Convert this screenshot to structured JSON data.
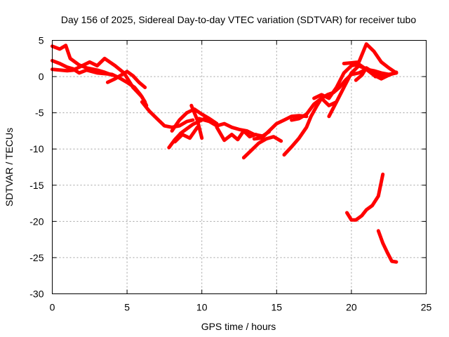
{
  "chart_data": {
    "type": "line",
    "title": "Day 156 of 2025, Sidereal Day-to-day VTEC variation (SDTVAR) for receiver tubo",
    "xlabel": "GPS time / hours",
    "ylabel": "SDTVAR / TECUs",
    "xlim": [
      0,
      25
    ],
    "ylim": [
      -30,
      5
    ],
    "xticks": [
      0,
      5,
      10,
      15,
      20,
      25
    ],
    "yticks": [
      5,
      0,
      -5,
      -10,
      -15,
      -20,
      -25,
      -30
    ],
    "xtick_labels": [
      "0",
      "5",
      "10",
      "15",
      "20",
      "25"
    ],
    "ytick_labels": [
      "5",
      "0",
      "-5",
      "-10",
      "-15",
      "-20",
      "-25",
      "-30"
    ],
    "grid": true,
    "color": "#ff0000",
    "series": [
      {
        "x": [
          0.0,
          0.5,
          0.9,
          1.2,
          1.8,
          2.3,
          3.0,
          3.5,
          4.0
        ],
        "y": [
          4.2,
          3.8,
          4.3,
          2.5,
          1.6,
          1.2,
          0.9,
          0.6,
          0.2
        ]
      },
      {
        "x": [
          0.0,
          0.5,
          1.0,
          1.5,
          2.0,
          2.5,
          3.0,
          3.5,
          4.2,
          4.8,
          5.4,
          6.0,
          6.3
        ],
        "y": [
          2.2,
          1.8,
          1.3,
          1.0,
          1.5,
          2.0,
          1.5,
          2.5,
          1.5,
          0.5,
          -1.5,
          -2.8,
          -4.0
        ]
      },
      {
        "x": [
          0.0,
          0.5,
          1.0,
          1.5,
          1.8,
          2.3,
          3.0,
          3.5,
          4.0,
          4.5,
          5.0,
          5.5,
          5.9,
          6.2
        ],
        "y": [
          1.0,
          0.9,
          0.8,
          0.9,
          0.5,
          0.9,
          0.5,
          0.4,
          0.3,
          -0.2,
          -0.8,
          -1.5,
          -2.5,
          -3.5
        ]
      },
      {
        "x": [
          3.7,
          4.2,
          4.6,
          5.0,
          5.4,
          5.8,
          6.2
        ],
        "y": [
          -0.8,
          -0.3,
          0.2,
          0.7,
          0.1,
          -0.8,
          -1.5
        ]
      },
      {
        "x": [
          6.0,
          6.5,
          7.0,
          7.5,
          8.0,
          8.5,
          9.0,
          9.4
        ],
        "y": [
          -3.5,
          -4.8,
          -5.8,
          -6.8,
          -7.0,
          -6.8,
          -6.2,
          -6.0
        ]
      },
      {
        "x": [
          7.8,
          8.2,
          8.6,
          9.0,
          9.4,
          9.8,
          10.2
        ],
        "y": [
          -9.8,
          -8.7,
          -7.8,
          -7.2,
          -6.6,
          -6.2,
          -5.8
        ]
      },
      {
        "x": [
          8.0,
          8.5,
          9.0,
          9.5,
          10.0,
          10.5,
          11.0
        ],
        "y": [
          -7.5,
          -6.0,
          -5.0,
          -4.5,
          -5.2,
          -5.8,
          -6.5
        ]
      },
      {
        "x": [
          8.2,
          8.7,
          9.2,
          9.7
        ],
        "y": [
          -9.0,
          -8.0,
          -8.5,
          -7.0
        ]
      },
      {
        "x": [
          9.3,
          9.7,
          10.0
        ],
        "y": [
          -4.0,
          -6.0,
          -8.5
        ]
      },
      {
        "x": [
          9.8,
          10.5,
          11.0,
          11.5,
          12.0,
          12.5,
          13.0,
          13.5,
          14.0
        ],
        "y": [
          -5.8,
          -6.2,
          -6.8,
          -6.5,
          -7.0,
          -7.3,
          -7.5,
          -8.0,
          -8.2
        ]
      },
      {
        "x": [
          11.0,
          11.5,
          12.0,
          12.4,
          12.8,
          13.2,
          13.6,
          14.0,
          14.5
        ],
        "y": [
          -7.0,
          -8.8,
          -8.0,
          -8.7,
          -7.5,
          -8.3,
          -8.0,
          -8.3,
          -7.6
        ]
      },
      {
        "x": [
          12.8,
          13.3,
          13.8,
          14.3,
          14.8,
          15.3
        ],
        "y": [
          -11.2,
          -10.2,
          -9.2,
          -8.6,
          -8.3,
          -8.9
        ]
      },
      {
        "x": [
          13.5,
          14.0,
          14.5,
          15.0,
          15.5,
          16.0,
          16.5,
          17.0
        ],
        "y": [
          -8.6,
          -8.5,
          -7.5,
          -6.5,
          -6.0,
          -5.5,
          -5.4,
          -5.5
        ]
      },
      {
        "x": [
          15.5,
          16.0,
          16.5,
          17.0,
          17.3,
          17.7,
          18.0,
          18.4,
          18.8,
          19.2,
          19.6,
          20.0,
          20.5,
          21.0,
          21.5,
          22.0,
          22.5,
          23.0
        ],
        "y": [
          -10.8,
          -9.7,
          -8.5,
          -7.0,
          -5.5,
          -4.0,
          -3.0,
          -2.5,
          -2.2,
          -1.5,
          -0.5,
          0.3,
          0.5,
          1.0,
          0.5,
          0.0,
          0.2,
          0.6
        ]
      },
      {
        "x": [
          16.0,
          16.5,
          17.0,
          17.5,
          18.0,
          18.5,
          19.0
        ],
        "y": [
          -6.0,
          -5.8,
          -5.2,
          -3.8,
          -3.0,
          -4.0,
          -3.5
        ]
      },
      {
        "x": [
          17.5,
          18.0,
          18.5,
          19.0,
          19.5,
          20.0,
          20.5,
          21.0,
          21.5,
          22.0,
          22.5,
          23.0
        ],
        "y": [
          -3.0,
          -2.5,
          -3.0,
          -1.5,
          0.5,
          1.5,
          1.7,
          1.0,
          0.8,
          0.5,
          0.3,
          0.5
        ]
      },
      {
        "x": [
          18.5,
          19.0,
          19.5,
          20.0,
          20.5,
          21.0,
          21.5,
          22.0,
          22.5
        ],
        "y": [
          -5.5,
          -3.5,
          -1.5,
          0.5,
          1.5,
          1.0,
          0.2,
          -0.3,
          0.2
        ]
      },
      {
        "x": [
          19.5,
          20.0,
          20.5,
          21.0,
          21.5,
          22.0,
          22.5,
          23.0
        ],
        "y": [
          1.8,
          1.9,
          2.0,
          4.5,
          3.5,
          2.0,
          1.2,
          0.5
        ]
      },
      {
        "x": [
          20.3,
          20.7,
          21.0,
          21.3,
          21.6
        ],
        "y": [
          -0.5,
          0.2,
          1.2,
          0.8,
          0.0
        ]
      },
      {
        "x": [
          19.7,
          20.0,
          20.3,
          20.7,
          21.0,
          21.4,
          21.8,
          22.1
        ],
        "y": [
          -18.8,
          -19.8,
          -19.8,
          -19.2,
          -18.4,
          -17.8,
          -16.5,
          -13.5
        ]
      },
      {
        "x": [
          21.8,
          22.1,
          22.4,
          22.7,
          23.0
        ],
        "y": [
          -21.3,
          -23.0,
          -24.3,
          -25.5,
          -25.6
        ]
      }
    ]
  }
}
